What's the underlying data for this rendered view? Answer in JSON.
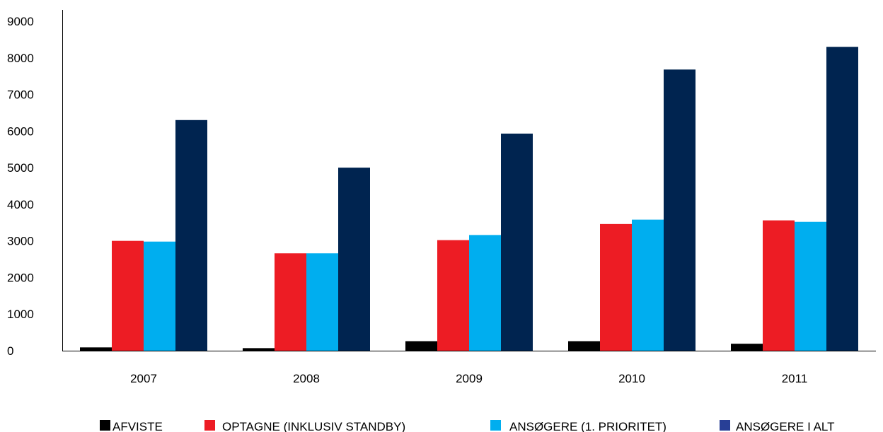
{
  "chart_data": {
    "type": "bar",
    "categories": [
      "2007",
      "2008",
      "2009",
      "2010",
      "2011"
    ],
    "series": [
      {
        "name": "AFVISTE",
        "color": "#000000",
        "values": [
          90,
          70,
          260,
          260,
          190
        ]
      },
      {
        "name": "OPTAGNE (INKLUSIV STANDBY)",
        "color": "#ED1C24",
        "values": [
          3000,
          2660,
          3020,
          3460,
          3560
        ]
      },
      {
        "name": "ANSØGERE (1. PRIORITET)",
        "color": "#00AEEF",
        "values": [
          2980,
          2660,
          3160,
          3580,
          3520
        ]
      },
      {
        "name": "ANSØGERE I ALT",
        "color": "#002450",
        "values": [
          6300,
          5000,
          5930,
          7680,
          8300
        ]
      }
    ],
    "legend_markers": [
      "#000000",
      "#ED1C24",
      "#00AEEF",
      "#283F96"
    ],
    "yticks": [
      "0",
      "1000",
      "2000",
      "3000",
      "4000",
      "5000",
      "6000",
      "7000",
      "8000",
      "9000"
    ],
    "ylim": [
      0,
      9000
    ],
    "grid": false,
    "legend_position": "bottom",
    "title": "",
    "xlabel": "",
    "ylabel": ""
  }
}
